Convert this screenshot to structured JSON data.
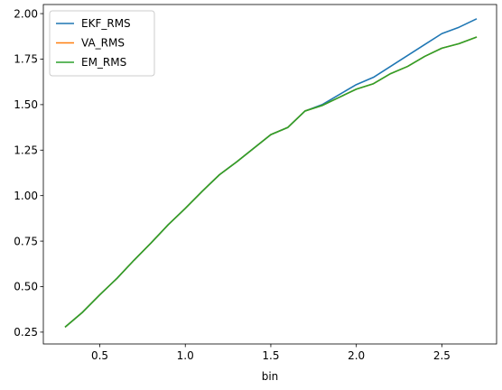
{
  "chart_data": {
    "type": "line",
    "title": "",
    "xlabel": "bin",
    "ylabel": "",
    "xlim": [
      0.17,
      2.82
    ],
    "ylim": [
      0.185,
      2.05
    ],
    "xticks": [
      0.5,
      1.0,
      1.5,
      2.0,
      2.5
    ],
    "xtick_labels": [
      "0.5",
      "1.0",
      "1.5",
      "2.0",
      "2.5"
    ],
    "yticks": [
      0.25,
      0.5,
      0.75,
      1.0,
      1.25,
      1.5,
      1.75,
      2.0
    ],
    "ytick_labels": [
      "0.25",
      "0.50",
      "0.75",
      "1.00",
      "1.25",
      "1.50",
      "1.75",
      "2.00"
    ],
    "grid": false,
    "legend_position": "top-left",
    "x": [
      0.3,
      0.4,
      0.5,
      0.6,
      0.7,
      0.8,
      0.9,
      1.0,
      1.1,
      1.2,
      1.3,
      1.4,
      1.5,
      1.6,
      1.7,
      1.8,
      1.9,
      2.0,
      2.1,
      2.2,
      2.3,
      2.4,
      2.5,
      2.6,
      2.7
    ],
    "series": [
      {
        "name": "EKF_RMS",
        "color": "#1f77b4",
        "values": [
          0.28,
          0.36,
          0.455,
          0.545,
          0.645,
          0.74,
          0.84,
          0.93,
          1.025,
          1.115,
          1.185,
          1.26,
          1.335,
          1.375,
          1.465,
          1.5,
          1.555,
          1.61,
          1.65,
          1.71,
          1.77,
          1.83,
          1.89,
          1.925,
          1.97
        ]
      },
      {
        "name": "VA_RMS",
        "color": "#ff7f0e",
        "values": [
          0.28,
          0.36,
          0.455,
          0.545,
          0.645,
          0.74,
          0.84,
          0.93,
          1.025,
          1.115,
          1.185,
          1.26,
          1.335,
          1.375,
          1.465,
          1.495,
          1.54,
          1.585,
          1.615,
          1.67,
          1.71,
          1.765,
          1.81,
          1.835,
          1.87
        ]
      },
      {
        "name": "EM_RMS",
        "color": "#2ca02c",
        "values": [
          0.28,
          0.36,
          0.455,
          0.545,
          0.645,
          0.74,
          0.84,
          0.93,
          1.025,
          1.115,
          1.185,
          1.26,
          1.335,
          1.375,
          1.465,
          1.495,
          1.54,
          1.585,
          1.615,
          1.67,
          1.71,
          1.765,
          1.81,
          1.835,
          1.87
        ]
      }
    ]
  }
}
